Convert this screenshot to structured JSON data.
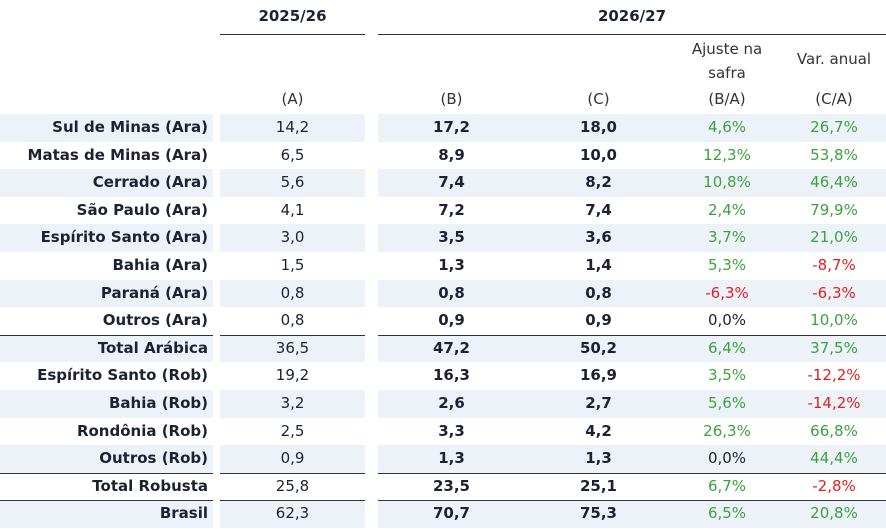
{
  "header": {
    "groups": [
      "2025/26",
      "2026/27"
    ],
    "column_titles": [
      "Ajuste na safra",
      "Var. anual"
    ],
    "columns": [
      "(A)",
      "(B)",
      "(C)",
      "(B/A)",
      "(C/A)"
    ]
  },
  "table": {
    "rows": [
      [
        "Sul de Minas (Ara)",
        "14,2",
        "17,2",
        "18,0",
        "4,6%",
        "26,7%"
      ],
      [
        "Matas de Minas (Ara)",
        "6,5",
        "8,9",
        "10,0",
        "12,3%",
        "53,8%"
      ],
      [
        "Cerrado (Ara)",
        "5,6",
        "7,4",
        "8,2",
        "10,8%",
        "46,4%"
      ],
      [
        "São Paulo (Ara)",
        "4,1",
        "7,2",
        "7,4",
        "2,4%",
        "79,9%"
      ],
      [
        "Espírito Santo (Ara)",
        "3,0",
        "3,5",
        "3,6",
        "3,7%",
        "21,0%"
      ],
      [
        "Bahia (Ara)",
        "1,5",
        "1,3",
        "1,4",
        "5,3%",
        "-8,7%"
      ],
      [
        "Paraná (Ara)",
        "0,8",
        "0,8",
        "0,8",
        "-6,3%",
        "-6,3%"
      ],
      [
        "Outros (Ara)",
        "0,8",
        "0,9",
        "0,9",
        "0,0%",
        "10,0%"
      ],
      [
        "Total Arábica",
        "36,5",
        "47,2",
        "50,2",
        "6,4%",
        "37,5%"
      ],
      [
        "Espírito Santo (Rob)",
        "19,2",
        "16,3",
        "16,9",
        "3,5%",
        "-12,2%"
      ],
      [
        "Bahia (Rob)",
        "3,2",
        "2,6",
        "2,7",
        "5,6%",
        "-14,2%"
      ],
      [
        "Rondônia (Rob)",
        "2,5",
        "3,3",
        "4,2",
        "26,3%",
        "66,8%"
      ],
      [
        "Outros (Rob)",
        "0,9",
        "1,3",
        "1,3",
        "0,0%",
        "44,4%"
      ],
      [
        "Total Robusta",
        "25,8",
        "23,5",
        "25,1",
        "6,7%",
        "-2,8%"
      ],
      [
        "Brasil",
        "62,3",
        "70,7",
        "75,3",
        "6,5%",
        "20,8%"
      ]
    ]
  }
}
